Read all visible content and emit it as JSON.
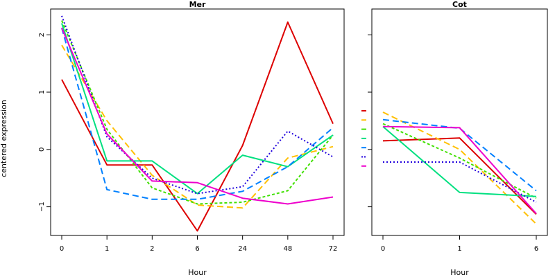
{
  "chart_data": [
    {
      "type": "line",
      "title": "Mer",
      "xlabel": "Hour",
      "ylabel": "centered expression",
      "categories": [
        "0",
        "1",
        "2",
        "6",
        "24",
        "48",
        "72"
      ],
      "ylim": [
        -1.5,
        2.45
      ],
      "yticks": [
        -1,
        0,
        1,
        2
      ],
      "grid": false,
      "series": [
        {
          "color": "#dd0000",
          "dash": "solid",
          "values": [
            1.22,
            -0.27,
            -0.27,
            -1.42,
            0.07,
            2.22,
            0.45
          ]
        },
        {
          "color": "#ffc000",
          "dash": "long-dash",
          "values": [
            1.82,
            0.5,
            -0.45,
            -0.97,
            -1.02,
            -0.15,
            0.05
          ]
        },
        {
          "color": "#40e000",
          "dash": "dash",
          "values": [
            2.25,
            0.35,
            -0.67,
            -0.95,
            -0.92,
            -0.72,
            0.25
          ]
        },
        {
          "color": "#00e080",
          "dash": "solid",
          "values": [
            2.2,
            -0.2,
            -0.2,
            -0.77,
            -0.1,
            -0.3,
            0.25
          ]
        },
        {
          "color": "#0080ff",
          "dash": "long-dash",
          "values": [
            2.12,
            -0.7,
            -0.87,
            -0.87,
            -0.73,
            -0.3,
            0.38
          ]
        },
        {
          "color": "#2000dd",
          "dash": "dot",
          "values": [
            2.33,
            0.22,
            -0.5,
            -0.77,
            -0.65,
            0.32,
            -0.13
          ]
        },
        {
          "color": "#ee00cc",
          "dash": "solid",
          "values": [
            2.12,
            0.27,
            -0.55,
            -0.58,
            -0.85,
            -0.95,
            -0.83
          ]
        }
      ]
    },
    {
      "type": "line",
      "title": "Cot",
      "xlabel": "Hour",
      "ylabel": "",
      "categories": [
        "0",
        "1",
        "6"
      ],
      "ylim": [
        -1.5,
        2.45
      ],
      "yticks": [
        -1,
        0,
        1,
        2
      ],
      "grid": false,
      "series": [
        {
          "color": "#dd0000",
          "dash": "solid",
          "values": [
            0.15,
            0.2,
            -1.13
          ]
        },
        {
          "color": "#ffc000",
          "dash": "long-dash",
          "values": [
            0.65,
            0.0,
            -1.3
          ]
        },
        {
          "color": "#40e000",
          "dash": "dash",
          "values": [
            0.45,
            -0.15,
            -0.85
          ]
        },
        {
          "color": "#00e080",
          "dash": "solid",
          "values": [
            0.4,
            -0.75,
            -0.82
          ]
        },
        {
          "color": "#0080ff",
          "dash": "long-dash",
          "values": [
            0.52,
            0.37,
            -0.72
          ]
        },
        {
          "color": "#2000dd",
          "dash": "dot",
          "values": [
            -0.22,
            -0.22,
            -0.92
          ]
        },
        {
          "color": "#ee00cc",
          "dash": "solid",
          "values": [
            0.4,
            0.38,
            -1.12
          ]
        }
      ]
    }
  ]
}
